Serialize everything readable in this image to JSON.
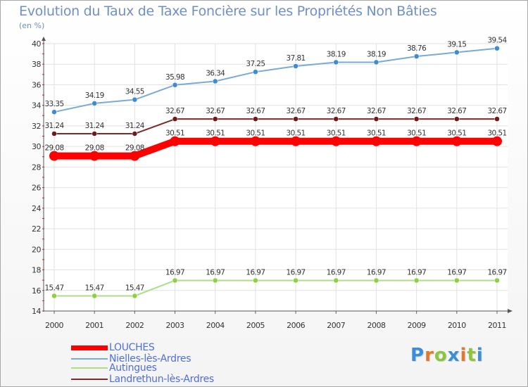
{
  "header": {
    "title": "Evolution du Taux de Taxe Foncière sur les Propriétés Non Bâties",
    "unit": "(en %)"
  },
  "logo": {
    "text": "Proxiti",
    "letters": [
      {
        "ch": "P",
        "color": "#3a8fd8"
      },
      {
        "ch": "r",
        "color": "#e07830"
      },
      {
        "ch": "o",
        "color": "#8cc63f"
      },
      {
        "ch": "x",
        "color": "#3a8fd8"
      },
      {
        "ch": "i",
        "color": "#e07830"
      },
      {
        "ch": "t",
        "color": "#8cc63f"
      },
      {
        "ch": "i",
        "color": "#3a8fd8"
      }
    ]
  },
  "chart_data": {
    "type": "line",
    "title": "Evolution du Taux de Taxe Foncière sur les Propriétés Non Bâties",
    "ylabel": "(en %)",
    "xlabel": "",
    "ylim": [
      14,
      40
    ],
    "yticks": [
      14,
      16,
      18,
      20,
      22,
      24,
      26,
      28,
      30,
      32,
      34,
      36,
      38,
      40
    ],
    "grid": true,
    "categories": [
      "2000",
      "2001",
      "2002",
      "2003",
      "2004",
      "2005",
      "2006",
      "2007",
      "2008",
      "2009",
      "2010",
      "2011"
    ],
    "series": [
      {
        "name": "LOUCHES",
        "color": "#ff0000",
        "values": [
          29.08,
          29.08,
          29.08,
          30.51,
          30.51,
          30.51,
          30.51,
          30.51,
          30.51,
          30.51,
          30.51,
          30.51
        ],
        "labels": [
          "29.08",
          "29.08",
          "29.08",
          "30.51",
          "30.51",
          "30.51",
          "30.51",
          "30.51",
          "30.51",
          "30.51",
          "30.51",
          "30.51"
        ]
      },
      {
        "name": "Nielles-lès-Ardres",
        "color": "#7aaad8",
        "marker": "#3d8cd2",
        "values": [
          33.35,
          34.19,
          34.55,
          35.98,
          36.34,
          37.25,
          37.81,
          38.19,
          38.19,
          38.76,
          39.15,
          39.54
        ],
        "labels": [
          "33.35",
          "34.19",
          "34.55",
          "35.98",
          "36.34",
          "37.25",
          "37.81",
          "38.19",
          "38.19",
          "38.76",
          "39.15",
          "39.54"
        ]
      },
      {
        "name": "Autingues",
        "color": "#aedd88",
        "marker": "#8cd13f",
        "values": [
          15.47,
          15.47,
          15.47,
          16.97,
          16.97,
          16.97,
          16.97,
          16.97,
          16.97,
          16.97,
          16.97,
          16.97
        ],
        "labels": [
          "15.47",
          "15.47",
          "15.47",
          "16.97",
          "16.97",
          "16.97",
          "16.97",
          "16.97",
          "16.97",
          "16.97",
          "16.97",
          "16.97"
        ]
      },
      {
        "name": "Landrethun-lès-Ardres",
        "color": "#7a2c2c",
        "marker": "#6e1a1a",
        "values": [
          31.24,
          31.24,
          31.24,
          32.67,
          32.67,
          32.67,
          32.67,
          32.67,
          32.67,
          32.67,
          32.67,
          32.67
        ],
        "labels": [
          "31.24",
          "31.24",
          "31.24",
          "32.67",
          "32.67",
          "32.67",
          "32.67",
          "32.67",
          "32.67",
          "32.67",
          "32.67",
          "32.67"
        ]
      }
    ],
    "legend": "bottom-left"
  }
}
